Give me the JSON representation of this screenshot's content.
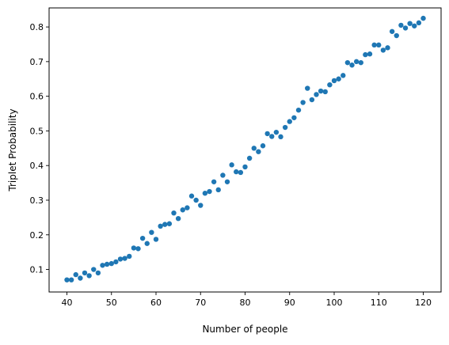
{
  "chart_data": {
    "type": "scatter",
    "title": "",
    "xlabel": "Number of people",
    "ylabel": "Triplet Probability",
    "xlim": [
      36,
      124
    ],
    "ylim": [
      0.035,
      0.855
    ],
    "xticks": [
      40,
      50,
      60,
      70,
      80,
      90,
      100,
      110,
      120
    ],
    "yticks": [
      0.1,
      0.2,
      0.3,
      0.4,
      0.5,
      0.6,
      0.7,
      0.8
    ],
    "ytick_labels": [
      "0.1",
      "0.2",
      "0.3",
      "0.4",
      "0.5",
      "0.6",
      "0.7",
      "0.8"
    ],
    "grid": false,
    "legend": false,
    "marker_color": "#1f77b4",
    "series": [
      {
        "x": [
          40,
          41,
          42,
          43,
          44,
          45,
          46,
          47,
          48,
          49,
          50,
          51,
          52,
          53,
          54,
          55,
          56,
          57,
          58,
          59,
          60,
          61,
          62,
          63,
          64,
          65,
          66,
          67,
          68,
          69,
          70,
          71,
          72,
          73,
          74,
          75,
          76,
          77,
          78,
          79,
          80,
          81,
          82,
          83,
          84,
          85,
          86,
          87,
          88,
          89,
          90,
          91,
          92,
          93,
          94,
          95,
          96,
          97,
          98,
          99,
          100,
          101,
          102,
          103,
          104,
          105,
          106,
          107,
          108,
          109,
          110,
          111,
          112,
          113,
          114,
          115,
          116,
          117,
          118,
          119,
          120
        ],
        "y": [
          0.07,
          0.07,
          0.085,
          0.075,
          0.09,
          0.082,
          0.1,
          0.09,
          0.112,
          0.115,
          0.117,
          0.122,
          0.13,
          0.132,
          0.138,
          0.162,
          0.16,
          0.19,
          0.175,
          0.207,
          0.187,
          0.225,
          0.23,
          0.232,
          0.263,
          0.247,
          0.272,
          0.278,
          0.312,
          0.3,
          0.285,
          0.32,
          0.325,
          0.353,
          0.33,
          0.372,
          0.353,
          0.402,
          0.382,
          0.38,
          0.396,
          0.421,
          0.45,
          0.44,
          0.457,
          0.492,
          0.484,
          0.496,
          0.483,
          0.51,
          0.527,
          0.538,
          0.56,
          0.582,
          0.623,
          0.59,
          0.605,
          0.615,
          0.613,
          0.633,
          0.645,
          0.65,
          0.66,
          0.697,
          0.69,
          0.7,
          0.697,
          0.72,
          0.722,
          0.748,
          0.748,
          0.733,
          0.74,
          0.787,
          0.775,
          0.805,
          0.797,
          0.81,
          0.803,
          0.812,
          0.825
        ]
      }
    ]
  }
}
